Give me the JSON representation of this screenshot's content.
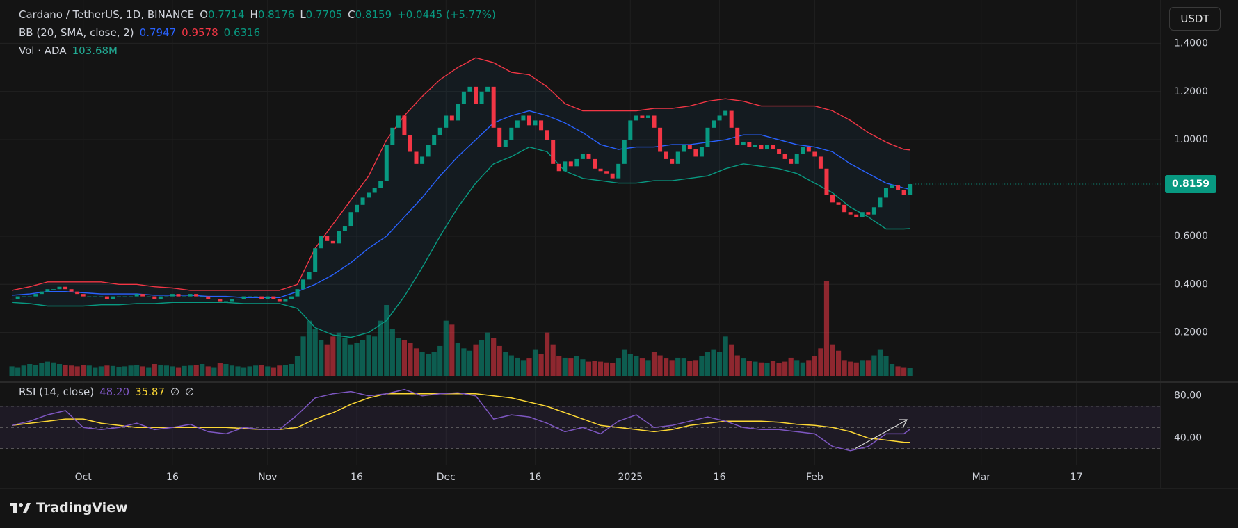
{
  "header": {
    "symbol": "Cardano / TetherUS, 1D, BINANCE",
    "ohlc": [
      {
        "label": "O",
        "value": "0.7714"
      },
      {
        "label": "H",
        "value": "0.8176"
      },
      {
        "label": "L",
        "value": "0.7705"
      },
      {
        "label": "C",
        "value": "0.8159"
      }
    ],
    "change": "+0.0445 (+5.77%)",
    "volume_name": "Vol · ADA",
    "volume_value": "103.68M",
    "currency_button": "USDT",
    "price_tag": "0.8159",
    "brand": "TradingView"
  },
  "chart_data": {
    "type": "candlestick",
    "xlim": [
      -2,
      193.2
    ],
    "xticks": [
      {
        "value": 12,
        "label": "Oct"
      },
      {
        "value": 27,
        "label": "16"
      },
      {
        "value": 43,
        "label": "Nov"
      },
      {
        "value": 58,
        "label": "16"
      },
      {
        "value": 73,
        "label": "Dec"
      },
      {
        "value": 88,
        "label": "16"
      },
      {
        "value": 104,
        "label": "2025"
      },
      {
        "value": 119,
        "label": "16"
      },
      {
        "value": 135,
        "label": "Feb"
      },
      {
        "value": 163,
        "label": "Mar"
      },
      {
        "value": 179,
        "label": "17"
      }
    ],
    "ylim": [
      0,
      1.58
    ],
    "yticks": [
      {
        "value": 0.2,
        "label": "0.2000"
      },
      {
        "value": 0.4,
        "label": "0.4000"
      },
      {
        "value": 0.6,
        "label": "0.6000"
      },
      {
        "value": 0.8,
        "label": "0.8000"
      },
      {
        "value": 1.0,
        "label": "1.0000"
      },
      {
        "value": 1.2,
        "label": "1.2000"
      },
      {
        "value": 1.4,
        "label": "1.4000"
      }
    ],
    "grid": true,
    "up_color": "#089981",
    "down_color": "#f23645",
    "close": [
      0.34,
      0.35,
      0.35,
      0.35,
      0.36,
      0.37,
      0.38,
      0.38,
      0.39,
      0.38,
      0.37,
      0.36,
      0.35,
      0.35,
      0.35,
      0.35,
      0.34,
      0.35,
      0.35,
      0.35,
      0.35,
      0.36,
      0.35,
      0.35,
      0.34,
      0.35,
      0.35,
      0.36,
      0.35,
      0.35,
      0.36,
      0.35,
      0.35,
      0.34,
      0.34,
      0.33,
      0.33,
      0.34,
      0.34,
      0.35,
      0.35,
      0.35,
      0.34,
      0.35,
      0.34,
      0.33,
      0.34,
      0.35,
      0.38,
      0.42,
      0.45,
      0.55,
      0.6,
      0.58,
      0.57,
      0.62,
      0.64,
      0.7,
      0.73,
      0.76,
      0.78,
      0.8,
      0.83,
      0.98,
      1.05,
      1.1,
      1.02,
      0.95,
      0.9,
      0.93,
      0.98,
      1.02,
      1.05,
      1.1,
      1.08,
      1.15,
      1.2,
      1.22,
      1.15,
      1.2,
      1.22,
      1.05,
      0.97,
      1.0,
      1.05,
      1.08,
      1.1,
      1.06,
      1.08,
      1.04,
      1.0,
      0.9,
      0.87,
      0.91,
      0.89,
      0.92,
      0.94,
      0.92,
      0.88,
      0.87,
      0.86,
      0.84,
      0.9,
      1.0,
      1.08,
      1.1,
      1.09,
      1.1,
      1.05,
      0.95,
      0.92,
      0.9,
      0.95,
      0.98,
      0.96,
      0.93,
      0.97,
      1.05,
      1.08,
      1.1,
      1.12,
      1.05,
      0.98,
      0.99,
      0.97,
      0.98,
      0.96,
      0.98,
      0.96,
      0.94,
      0.92,
      0.9,
      0.94,
      0.97,
      0.95,
      0.93,
      0.88,
      0.77,
      0.74,
      0.73,
      0.7,
      0.69,
      0.68,
      0.7,
      0.69,
      0.72,
      0.76,
      0.8,
      0.81,
      0.79,
      0.7714,
      0.8159
    ],
    "volume": [
      120,
      110,
      130,
      150,
      140,
      160,
      180,
      170,
      150,
      140,
      130,
      120,
      140,
      130,
      110,
      120,
      130,
      125,
      115,
      120,
      130,
      140,
      120,
      110,
      150,
      140,
      130,
      120,
      110,
      125,
      130,
      140,
      150,
      120,
      110,
      160,
      150,
      130,
      120,
      110,
      120,
      130,
      140,
      120,
      110,
      130,
      140,
      150,
      250,
      500,
      700,
      600,
      450,
      400,
      500,
      550,
      480,
      400,
      420,
      450,
      520,
      500,
      700,
      900,
      600,
      480,
      450,
      420,
      350,
      300,
      280,
      300,
      380,
      700,
      650,
      420,
      350,
      320,
      400,
      450,
      550,
      480,
      380,
      300,
      260,
      230,
      200,
      220,
      330,
      280,
      550,
      400,
      250,
      230,
      220,
      250,
      210,
      180,
      190,
      180,
      170,
      160,
      220,
      330,
      280,
      250,
      220,
      200,
      300,
      260,
      220,
      200,
      230,
      220,
      190,
      200,
      250,
      300,
      330,
      300,
      500,
      400,
      260,
      220,
      190,
      180,
      170,
      160,
      190,
      160,
      180,
      230,
      200,
      170,
      200,
      250,
      350,
      1200,
      400,
      320,
      200,
      180,
      170,
      200,
      200,
      260,
      330,
      250,
      150,
      120,
      110,
      103.68
    ],
    "bollinger": {
      "name": "BB (20, SMA, close, 2)",
      "x": [
        0,
        3,
        6,
        9,
        12,
        15,
        18,
        21,
        24,
        27,
        30,
        33,
        36,
        39,
        42,
        45,
        48,
        51,
        54,
        57,
        60,
        63,
        66,
        69,
        72,
        75,
        78,
        81,
        84,
        87,
        90,
        93,
        96,
        99,
        102,
        105,
        108,
        111,
        114,
        117,
        120,
        123,
        126,
        129,
        132,
        135,
        138,
        141,
        144,
        147,
        150,
        151
      ],
      "series": [
        {
          "name": "basis",
          "color": "#2962ff",
          "label": "0.7947",
          "values": [
            0.355,
            0.36,
            0.37,
            0.37,
            0.365,
            0.36,
            0.36,
            0.36,
            0.355,
            0.355,
            0.355,
            0.35,
            0.35,
            0.345,
            0.345,
            0.345,
            0.37,
            0.4,
            0.44,
            0.49,
            0.55,
            0.6,
            0.68,
            0.76,
            0.85,
            0.93,
            1.0,
            1.07,
            1.1,
            1.12,
            1.1,
            1.07,
            1.03,
            0.98,
            0.96,
            0.97,
            0.97,
            0.98,
            0.98,
            0.99,
            1.0,
            1.02,
            1.02,
            1.0,
            0.98,
            0.97,
            0.95,
            0.9,
            0.86,
            0.82,
            0.8,
            0.7947
          ]
        },
        {
          "name": "upper",
          "color": "#f23645",
          "label": "0.9578",
          "values": [
            0.375,
            0.39,
            0.41,
            0.41,
            0.41,
            0.41,
            0.4,
            0.4,
            0.39,
            0.385,
            0.375,
            0.375,
            0.375,
            0.375,
            0.375,
            0.375,
            0.4,
            0.55,
            0.65,
            0.75,
            0.85,
            1.0,
            1.1,
            1.18,
            1.25,
            1.3,
            1.34,
            1.32,
            1.28,
            1.27,
            1.22,
            1.15,
            1.12,
            1.12,
            1.12,
            1.12,
            1.13,
            1.13,
            1.14,
            1.16,
            1.17,
            1.16,
            1.14,
            1.14,
            1.14,
            1.14,
            1.12,
            1.08,
            1.03,
            0.99,
            0.96,
            0.9578
          ]
        },
        {
          "name": "lower",
          "color": "#089981",
          "label": "0.6316",
          "values": [
            0.325,
            0.32,
            0.31,
            0.31,
            0.31,
            0.315,
            0.315,
            0.32,
            0.32,
            0.325,
            0.325,
            0.325,
            0.325,
            0.32,
            0.32,
            0.32,
            0.3,
            0.22,
            0.19,
            0.18,
            0.2,
            0.25,
            0.35,
            0.47,
            0.6,
            0.72,
            0.82,
            0.9,
            0.93,
            0.97,
            0.95,
            0.87,
            0.84,
            0.83,
            0.82,
            0.82,
            0.83,
            0.83,
            0.84,
            0.85,
            0.88,
            0.9,
            0.89,
            0.88,
            0.86,
            0.82,
            0.78,
            0.72,
            0.68,
            0.63,
            0.63,
            0.6316
          ]
        }
      ]
    },
    "rsi": {
      "name": "RSI (14, close)",
      "ylim": [
        14,
        91
      ],
      "yticks": [
        {
          "value": 40,
          "label": "40.00"
        },
        {
          "value": 80,
          "label": "80.00"
        }
      ],
      "levels": [
        30,
        50,
        70
      ],
      "extra_labels": [
        "∅",
        "∅"
      ],
      "x": [
        0,
        3,
        6,
        9,
        12,
        15,
        18,
        21,
        24,
        27,
        30,
        33,
        36,
        39,
        42,
        45,
        48,
        51,
        54,
        57,
        60,
        63,
        66,
        69,
        72,
        75,
        78,
        81,
        84,
        87,
        90,
        93,
        96,
        99,
        102,
        105,
        108,
        111,
        114,
        117,
        120,
        123,
        126,
        129,
        132,
        135,
        138,
        141,
        144,
        147,
        150,
        151
      ],
      "series": [
        {
          "name": "rsi",
          "color": "#7e57c2",
          "label": "48.20",
          "values": [
            52,
            56,
            62,
            66,
            50,
            48,
            50,
            54,
            48,
            50,
            53,
            46,
            44,
            50,
            48,
            48,
            62,
            78,
            82,
            84,
            80,
            82,
            86,
            80,
            82,
            83,
            80,
            58,
            62,
            60,
            54,
            46,
            50,
            44,
            56,
            62,
            50,
            52,
            56,
            60,
            56,
            50,
            48,
            48,
            46,
            44,
            32,
            28,
            32,
            44,
            44,
            48.2
          ]
        },
        {
          "name": "ma",
          "color": "#fdd835",
          "label": "35.87",
          "values": [
            52,
            54,
            56,
            58,
            58,
            54,
            52,
            50,
            50,
            50,
            50,
            50,
            50,
            49,
            48,
            48,
            50,
            58,
            64,
            72,
            78,
            82,
            82,
            82,
            82,
            82,
            82,
            80,
            78,
            74,
            70,
            64,
            58,
            52,
            50,
            48,
            46,
            48,
            52,
            54,
            56,
            56,
            56,
            55,
            53,
            52,
            50,
            46,
            40,
            38,
            36,
            35.87
          ]
        }
      ]
    }
  }
}
